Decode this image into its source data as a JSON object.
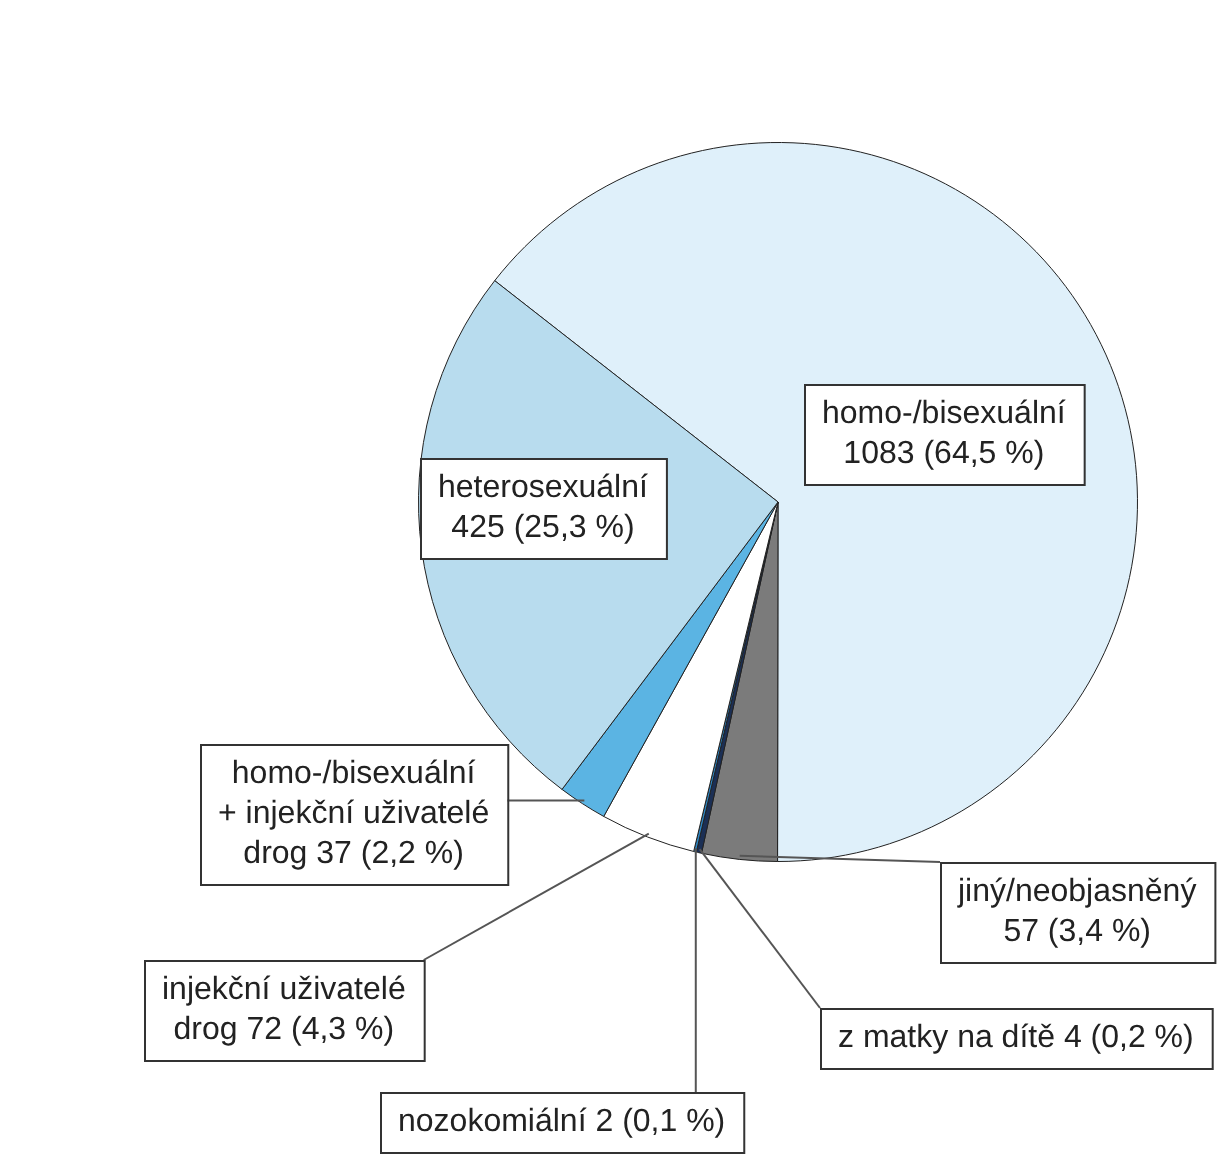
{
  "chart_data": {
    "type": "pie",
    "categories": [
      "homo-/bisexuální",
      "jiný/neobjasněný",
      "z matky na dítě",
      "nozokomiální",
      "injekční uživatelé drog",
      "homo-/bisexuální + injekční uživatelé drog",
      "heterosexuální"
    ],
    "values": [
      1083,
      57,
      4,
      2,
      72,
      37,
      425
    ],
    "value_labels": [
      "1083 (64,5 %)",
      "57 (3,4 %)",
      "4 (0,2 %)",
      "2 (0,1 %)",
      "72 (4,3 %)",
      "37 (2,2 %)",
      "425 (25,3 %)"
    ],
    "colors": [
      "#dff0fa",
      "#7b7b7b",
      "#1b2f55",
      "#2d86c4",
      "#ffffff",
      "#5bb4e3",
      "#b8dcee"
    ],
    "legend": false
  }
}
